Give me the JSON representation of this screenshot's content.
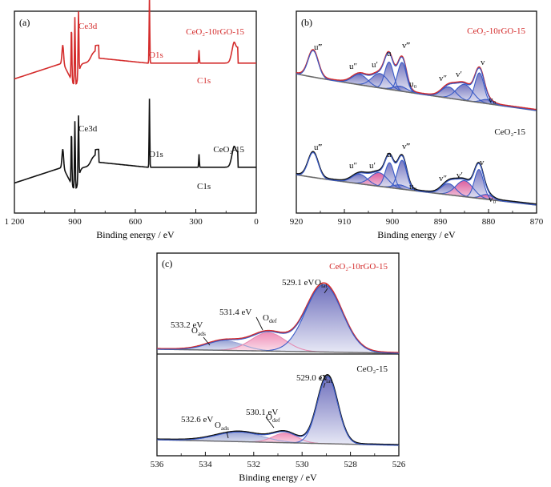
{
  "colors": {
    "red": "#d42c2c",
    "black": "#111111",
    "blue": "#3a5bc7",
    "gray": "#6b6b6b",
    "fill_blue": "#7d7ec3",
    "fill_pink": "#e0609f",
    "fill_light_blue": "#b9c2e3",
    "fill_light_pink": "#f2a9c7"
  },
  "chart_data": [
    {
      "id": "a",
      "type": "line",
      "panel_label": "(a)",
      "xlabel": "Binding energy / eV",
      "xlim": [
        1200,
        0
      ],
      "x_ticks": [
        "1 200",
        "900",
        "600",
        "300",
        "0"
      ],
      "x_tick_values": [
        1200,
        900,
        600,
        300,
        0
      ],
      "series": [
        {
          "name": "CeO₂-10rGO-15",
          "color_key": "red",
          "peak_labels": [
            {
              "text": "Ce3d",
              "x": 900
            },
            {
              "text": "O1s",
              "x": 530
            },
            {
              "text": "C1s",
              "x": 284
            }
          ]
        },
        {
          "name": "CeO₂-15",
          "color_key": "black",
          "peak_labels": [
            {
              "text": "Ce3d",
              "x": 900
            },
            {
              "text": "O1s",
              "x": 530
            },
            {
              "text": "C1s",
              "x": 284
            }
          ]
        }
      ]
    },
    {
      "id": "b",
      "type": "line",
      "panel_label": "(b)",
      "xlabel": "Binding energy / eV",
      "xlim": [
        920,
        870
      ],
      "x_ticks": [
        "920",
        "910",
        "900",
        "890",
        "880",
        "870"
      ],
      "x_tick_values": [
        920,
        910,
        900,
        890,
        880,
        870
      ],
      "series": [
        {
          "name": "CeO₂-10rGO-15",
          "color_key": "red",
          "peaks": [
            {
              "label": "u‴",
              "x": 916.5
            },
            {
              "label": "u″",
              "x": 906.8
            },
            {
              "label": "u′",
              "x": 902.3
            },
            {
              "label": "u",
              "x": 900.7
            },
            {
              "label": "v‴",
              "x": 897.9
            },
            {
              "label": "u₀",
              "x": 898.3
            },
            {
              "label": "v″",
              "x": 888.2
            },
            {
              "label": "v′",
              "x": 885.0
            },
            {
              "label": "v",
              "x": 881.9
            },
            {
              "label": "v₀",
              "x": 880.3
            }
          ]
        },
        {
          "name": "CeO₂-15",
          "color_key": "black",
          "peaks": [
            {
              "label": "u‴",
              "x": 916.5
            },
            {
              "label": "u″",
              "x": 906.8
            },
            {
              "label": "u′",
              "x": 902.8
            },
            {
              "label": "u",
              "x": 900.6
            },
            {
              "label": "v‴",
              "x": 898.0
            },
            {
              "label": "u₀",
              "x": 898.3
            },
            {
              "label": "v″",
              "x": 888.2
            },
            {
              "label": "v′",
              "x": 885.0
            },
            {
              "label": "v",
              "x": 882.0
            },
            {
              "label": "v₀",
              "x": 880.3
            }
          ]
        }
      ]
    },
    {
      "id": "c",
      "type": "line",
      "panel_label": "(c)",
      "xlabel": "Binding energy / eV",
      "xlim": [
        536,
        526
      ],
      "x_ticks": [
        "536",
        "534",
        "532",
        "530",
        "528",
        "526"
      ],
      "x_tick_values": [
        536,
        534,
        532,
        530,
        528,
        526
      ],
      "series": [
        {
          "name": "CeO₂-10rGO-15",
          "color_key": "red",
          "components": [
            {
              "label": "O",
              "sub": "ads",
              "energy_label": "533.2 eV",
              "x": 533.2
            },
            {
              "label": "O",
              "sub": "def",
              "energy_label": "531.4 eV",
              "x": 531.4
            },
            {
              "label": "O",
              "sub": "lat",
              "energy_label": "529.1 eV",
              "x": 529.1
            }
          ]
        },
        {
          "name": "CeO₂-15",
          "color_key": "black",
          "components": [
            {
              "label": "O",
              "sub": "ads",
              "energy_label": "532.6 eV",
              "x": 532.6
            },
            {
              "label": "O",
              "sub": "def",
              "energy_label": "530.1 eV",
              "x": 530.1
            },
            {
              "label": "O",
              "sub": "lat",
              "energy_label": "529.0 eV",
              "x": 529.0
            }
          ]
        }
      ]
    }
  ]
}
